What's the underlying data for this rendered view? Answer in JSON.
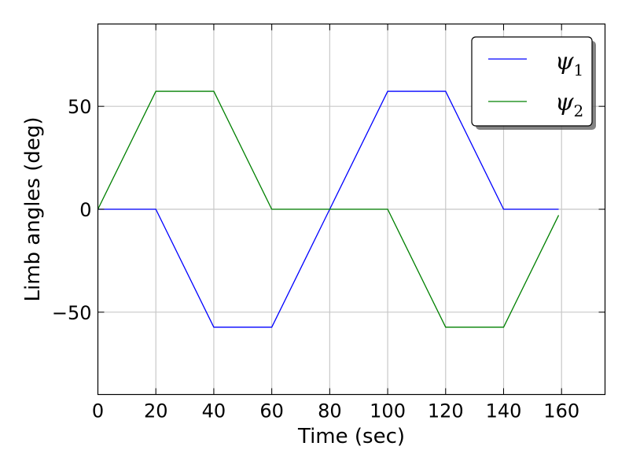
{
  "chart_data": {
    "type": "line",
    "title": "",
    "xlabel": "Time (sec)",
    "ylabel": "Limb angles (deg)",
    "xlim": [
      0,
      175
    ],
    "ylim": [
      -90,
      90
    ],
    "xticks": [
      0,
      20,
      40,
      60,
      80,
      100,
      120,
      140,
      160
    ],
    "xtick_labels": [
      "0",
      "20",
      "40",
      "60",
      "80",
      "100",
      "120",
      "140",
      "160"
    ],
    "yticks": [
      -50,
      0,
      50
    ],
    "ytick_labels": [
      "−50",
      "0",
      "50"
    ],
    "grid": true,
    "legend_placement": "top-right",
    "series": [
      {
        "name": "ψ",
        "subscript": "1",
        "color": "#0000ff",
        "x": [
          0,
          20,
          40,
          60,
          80,
          100,
          120,
          140,
          159
        ],
        "y": [
          0,
          0,
          -57.3,
          -57.3,
          0,
          57.3,
          57.3,
          0,
          0
        ]
      },
      {
        "name": "ψ",
        "subscript": "2",
        "color": "#008000",
        "x": [
          0,
          20,
          40,
          60,
          80,
          100,
          120,
          140,
          159
        ],
        "y": [
          0,
          57.3,
          57.3,
          0,
          0,
          0,
          -57.3,
          -57.3,
          -2.9
        ]
      }
    ]
  }
}
